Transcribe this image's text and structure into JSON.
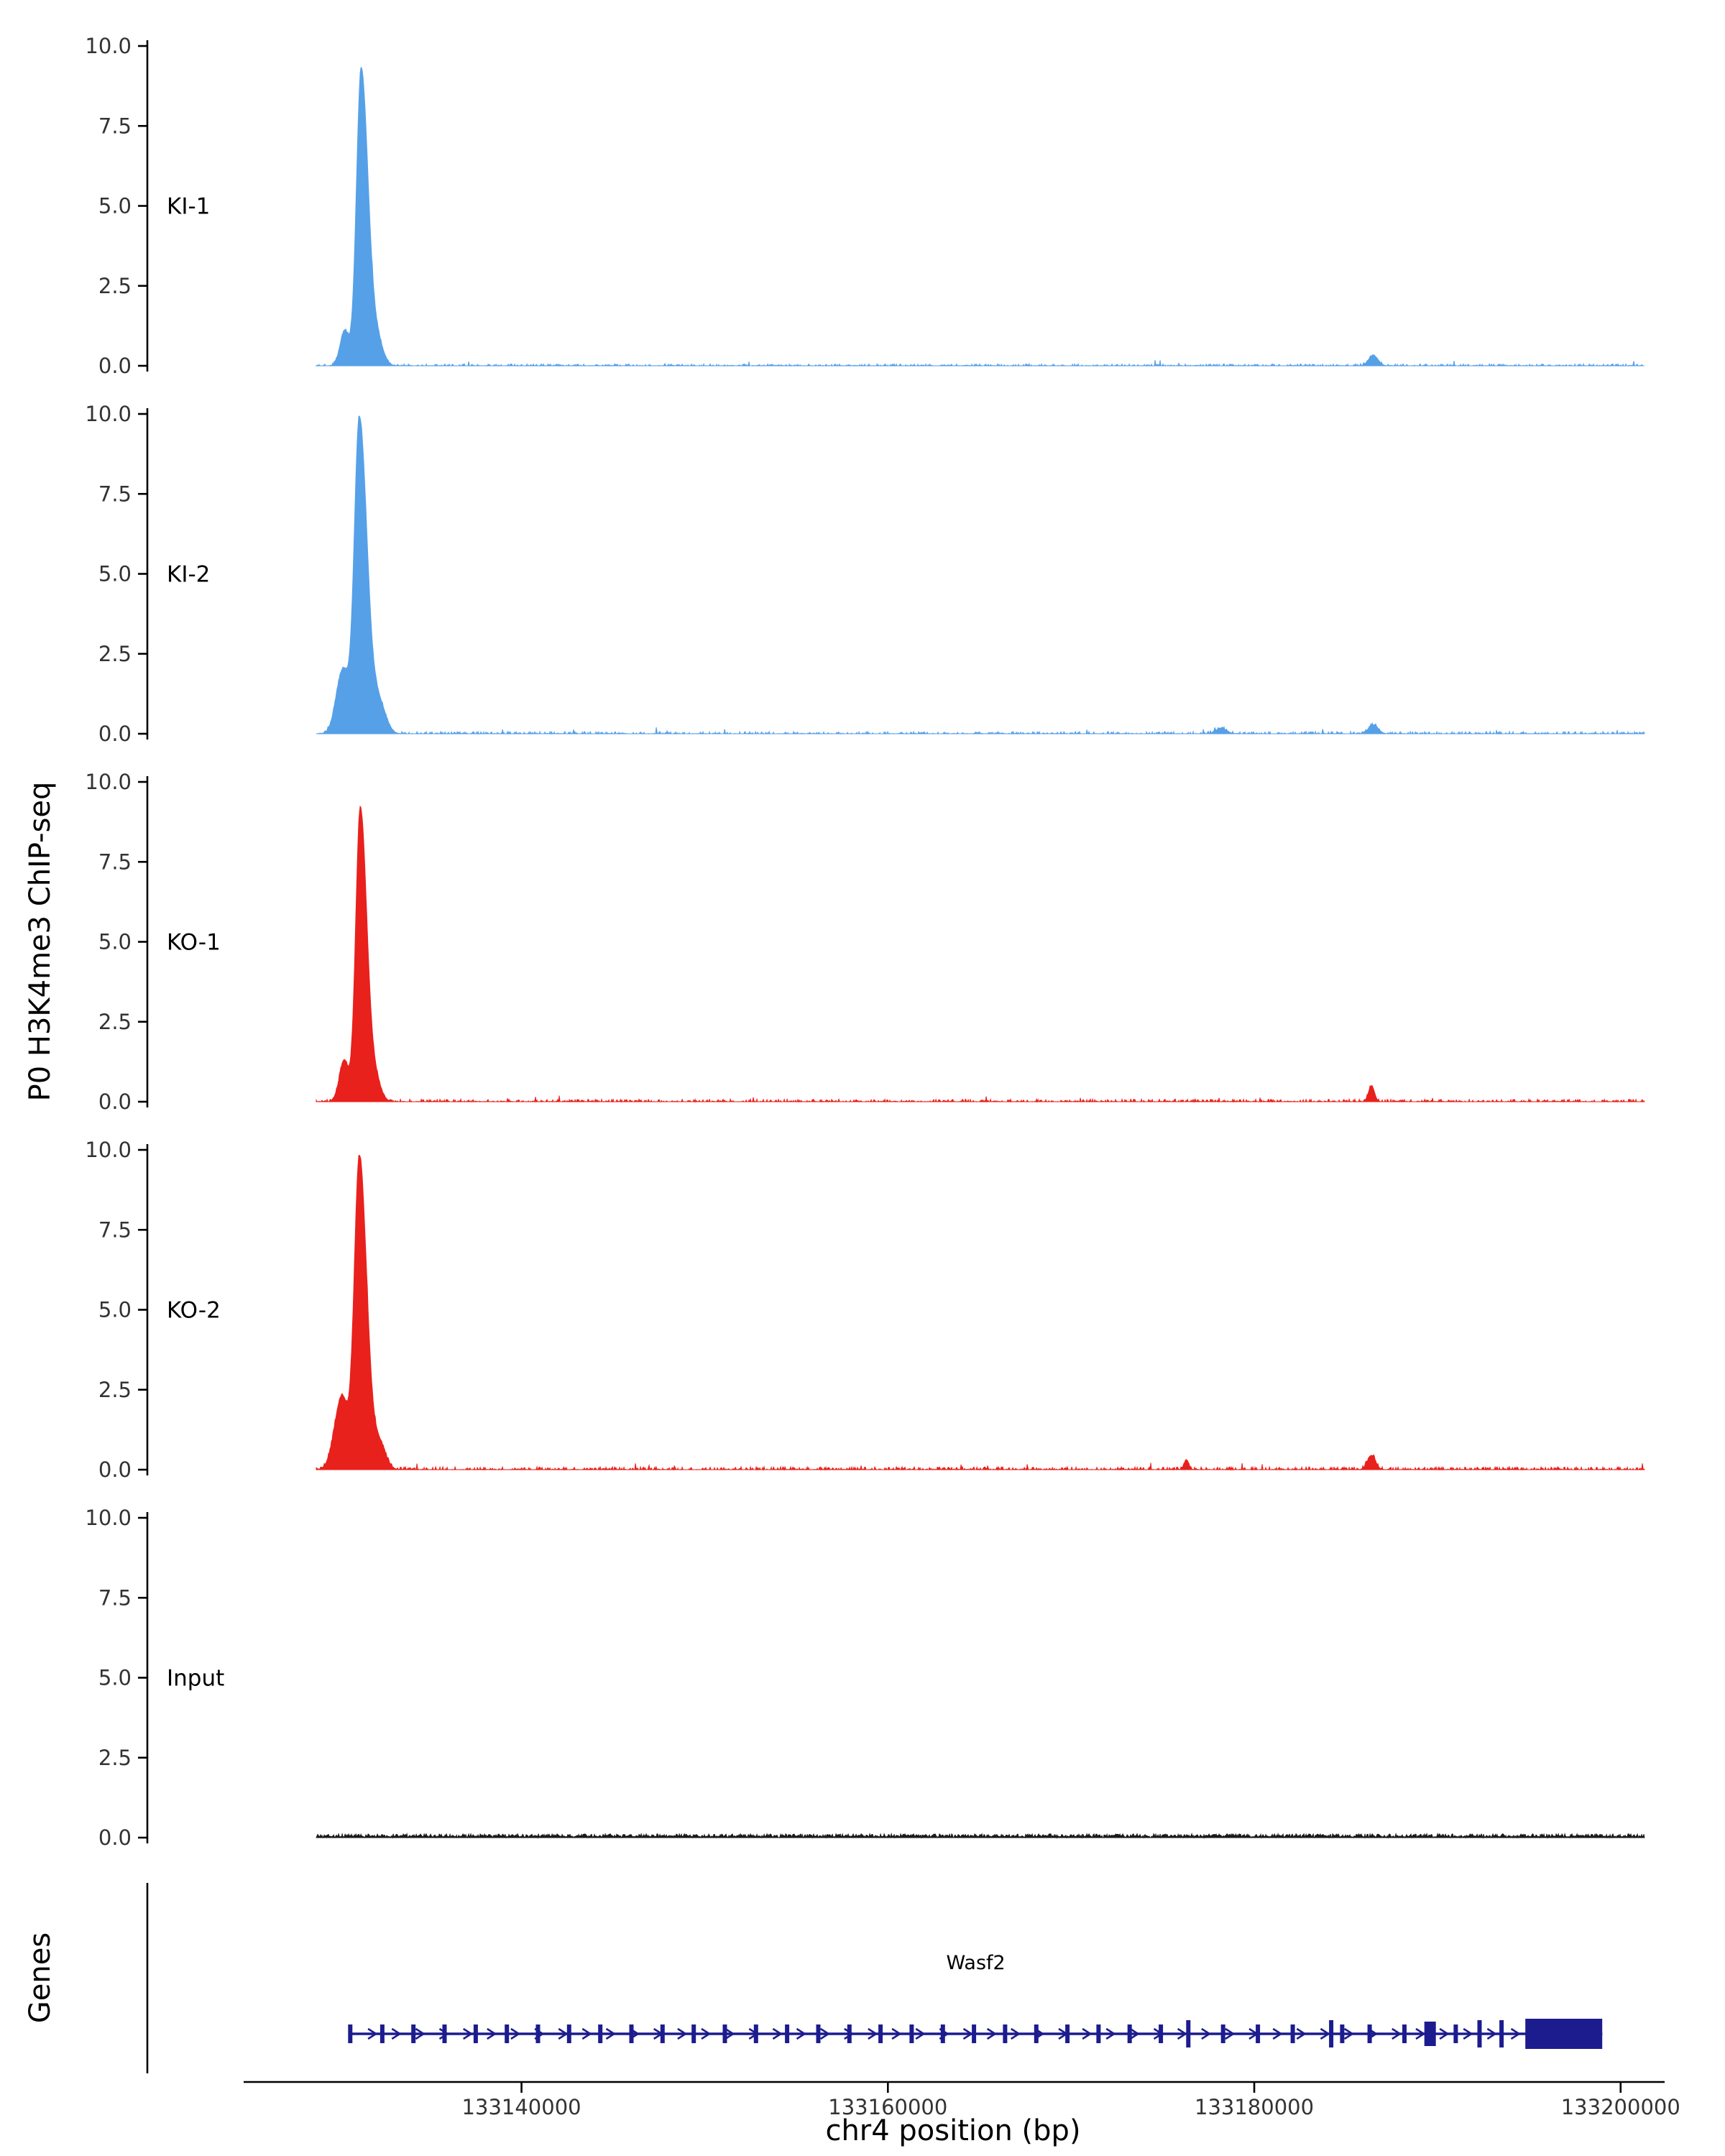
{
  "figure": {
    "y_axis_label": "P0 H3K4me3 ChIP-seq",
    "genes_panel_label": "Genes",
    "x_axis_title": "chr4 position (bp)"
  },
  "chart_data": {
    "type": "area",
    "title": "",
    "xlabel": "chr4 position (bp)",
    "ylabel": "P0 H3K4me3 ChIP-seq",
    "x_domain": [
      133127500,
      133201500
    ],
    "x_ticks": [
      133140000,
      133160000,
      133180000,
      133200000
    ],
    "y_ticks": [
      0.0,
      2.5,
      5.0,
      7.5,
      10.0
    ],
    "y_domain": [
      0,
      10
    ],
    "data_range": [
      133128800,
      133201300
    ],
    "grid": false,
    "legend": "none",
    "tracks": [
      {
        "name": "KI-1",
        "color": "#56a0e8",
        "noise_amp": 0.06,
        "noise_profile": "sparse",
        "seed": 101,
        "peaks": [
          {
            "c": 133131250,
            "h": 9.3,
            "wl": 260,
            "wr": 380
          },
          {
            "c": 133130350,
            "h": 1.1,
            "wl": 250,
            "wr": 220
          },
          {
            "c": 133132150,
            "h": 0.7,
            "wl": 300,
            "wr": 320
          }
        ],
        "minor_peaks": [
          {
            "c": 133186500,
            "h": 0.32,
            "wl": 260,
            "wr": 260
          }
        ]
      },
      {
        "name": "KI-2",
        "color": "#56a0e8",
        "noise_amp": 0.07,
        "noise_profile": "sparse",
        "seed": 202,
        "peaks": [
          {
            "c": 133131150,
            "h": 9.9,
            "wl": 280,
            "wr": 420
          },
          {
            "c": 133130250,
            "h": 2.0,
            "wl": 360,
            "wr": 300
          },
          {
            "c": 133132250,
            "h": 0.9,
            "wl": 340,
            "wr": 360
          }
        ],
        "minor_peaks": [
          {
            "c": 133186500,
            "h": 0.28,
            "wl": 260,
            "wr": 260
          },
          {
            "c": 133178200,
            "h": 0.16,
            "wl": 300,
            "wr": 300
          }
        ]
      },
      {
        "name": "KO-1",
        "color": "#e8211c",
        "noise_amp": 0.08,
        "noise_profile": "sparse",
        "seed": 303,
        "peaks": [
          {
            "c": 133131200,
            "h": 9.2,
            "wl": 250,
            "wr": 360
          },
          {
            "c": 133130320,
            "h": 1.3,
            "wl": 260,
            "wr": 230
          },
          {
            "c": 133132050,
            "h": 0.6,
            "wl": 280,
            "wr": 300
          }
        ],
        "minor_peaks": [
          {
            "c": 133186400,
            "h": 0.5,
            "wl": 160,
            "wr": 160
          }
        ]
      },
      {
        "name": "KO-2",
        "color": "#e8211c",
        "noise_amp": 0.09,
        "noise_profile": "sparse",
        "seed": 404,
        "peaks": [
          {
            "c": 133131150,
            "h": 9.8,
            "wl": 280,
            "wr": 400
          },
          {
            "c": 133130200,
            "h": 2.3,
            "wl": 400,
            "wr": 320
          },
          {
            "c": 133132250,
            "h": 0.8,
            "wl": 330,
            "wr": 340
          }
        ],
        "minor_peaks": [
          {
            "c": 133176300,
            "h": 0.3,
            "wl": 130,
            "wr": 130
          },
          {
            "c": 133186400,
            "h": 0.45,
            "wl": 220,
            "wr": 220
          }
        ]
      },
      {
        "name": "Input",
        "color": "#1a1a1a",
        "noise_amp": 0.12,
        "noise_profile": "dense",
        "seed": 505,
        "peaks": [],
        "minor_peaks": []
      }
    ],
    "gene_track": {
      "gene_name": "Wasf2",
      "color": "#1c1c8f",
      "strand": "+",
      "start": 133130600,
      "end": 133199000,
      "arrow_spacing_bp": 1300,
      "exons": [
        {
          "pos": 133130650,
          "type": "s"
        },
        {
          "pos": 133132400,
          "type": "s"
        },
        {
          "pos": 133134100,
          "type": "s"
        },
        {
          "pos": 133135800,
          "type": "s"
        },
        {
          "pos": 133137500,
          "type": "s"
        },
        {
          "pos": 133139200,
          "type": "s"
        },
        {
          "pos": 133140900,
          "type": "s"
        },
        {
          "pos": 133142600,
          "type": "s"
        },
        {
          "pos": 133144300,
          "type": "s"
        },
        {
          "pos": 133146000,
          "type": "s"
        },
        {
          "pos": 133147700,
          "type": "s"
        },
        {
          "pos": 133149400,
          "type": "s"
        },
        {
          "pos": 133151100,
          "type": "s"
        },
        {
          "pos": 133152800,
          "type": "s"
        },
        {
          "pos": 133154500,
          "type": "s"
        },
        {
          "pos": 133156200,
          "type": "s"
        },
        {
          "pos": 133157900,
          "type": "s"
        },
        {
          "pos": 133159600,
          "type": "s"
        },
        {
          "pos": 133161300,
          "type": "s"
        },
        {
          "pos": 133163000,
          "type": "s"
        },
        {
          "pos": 133164700,
          "type": "s"
        },
        {
          "pos": 133166400,
          "type": "s"
        },
        {
          "pos": 133168100,
          "type": "s"
        },
        {
          "pos": 133169800,
          "type": "s"
        },
        {
          "pos": 133171500,
          "type": "s"
        },
        {
          "pos": 133173200,
          "type": "s"
        },
        {
          "pos": 133174900,
          "type": "s"
        },
        {
          "pos": 133176400,
          "type": "t"
        },
        {
          "pos": 133178300,
          "type": "s"
        },
        {
          "pos": 133180200,
          "type": "s"
        },
        {
          "pos": 133182100,
          "type": "s"
        },
        {
          "pos": 133184200,
          "type": "t"
        },
        {
          "pos": 133184800,
          "type": "s"
        },
        {
          "pos": 133186300,
          "type": "s"
        },
        {
          "pos": 133188200,
          "type": "s"
        },
        {
          "pos": 133189600,
          "type": "b"
        },
        {
          "pos": 133191000,
          "type": "s"
        },
        {
          "pos": 133192300,
          "type": "t"
        },
        {
          "pos": 133193500,
          "type": "t"
        }
      ],
      "thick_blocks": [
        {
          "start": 133194800,
          "end": 133199000
        }
      ]
    }
  }
}
